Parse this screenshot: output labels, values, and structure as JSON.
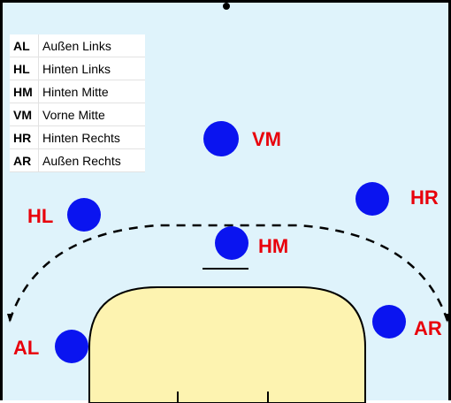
{
  "legend": [
    {
      "abbr": "AL",
      "desc": "Außen Links"
    },
    {
      "abbr": "HL",
      "desc": "Hinten Links"
    },
    {
      "abbr": "HM",
      "desc": "Hinten Mitte"
    },
    {
      "abbr": "VM",
      "desc": "Vorne Mitte"
    },
    {
      "abbr": "HR",
      "desc": "Hinten Rechts"
    },
    {
      "abbr": "AR",
      "desc": "Außen Rechts"
    }
  ],
  "players": {
    "vm": "VM",
    "hl": "HL",
    "hr": "HR",
    "hm": "HM",
    "al": "AL",
    "ar": "AR"
  },
  "colors": {
    "court": "#dff3fb",
    "goal_area": "#fdf3b0",
    "player": "#0a14f0",
    "label": "#e8000b"
  }
}
